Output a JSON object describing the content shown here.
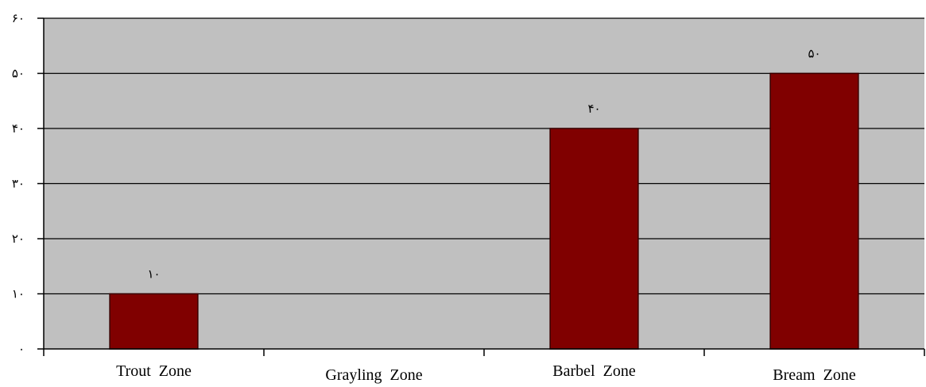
{
  "chart_data": {
    "type": "bar",
    "categories": [
      "Trout  Zone",
      "Grayling  Zone",
      "Barbel  Zone",
      "Bream  Zone"
    ],
    "values": [
      10,
      0,
      40,
      50
    ],
    "data_labels": [
      "١٠",
      "",
      "۴٠",
      "۵٠"
    ],
    "y_ticks": [
      0,
      10,
      20,
      30,
      40,
      50,
      60
    ],
    "y_tick_labels": [
      "٠",
      "١٠",
      "٢٠",
      "٣٠",
      "۴٠",
      "۵٠",
      "۶٠"
    ],
    "ylim": [
      0,
      60
    ],
    "grid": true,
    "legend": "none",
    "colors": {
      "bar": "#800000",
      "bar_stroke": "#3a0000",
      "plot_background": "#c0c0c0",
      "gridline": "#000000",
      "axis": "#000000"
    }
  }
}
